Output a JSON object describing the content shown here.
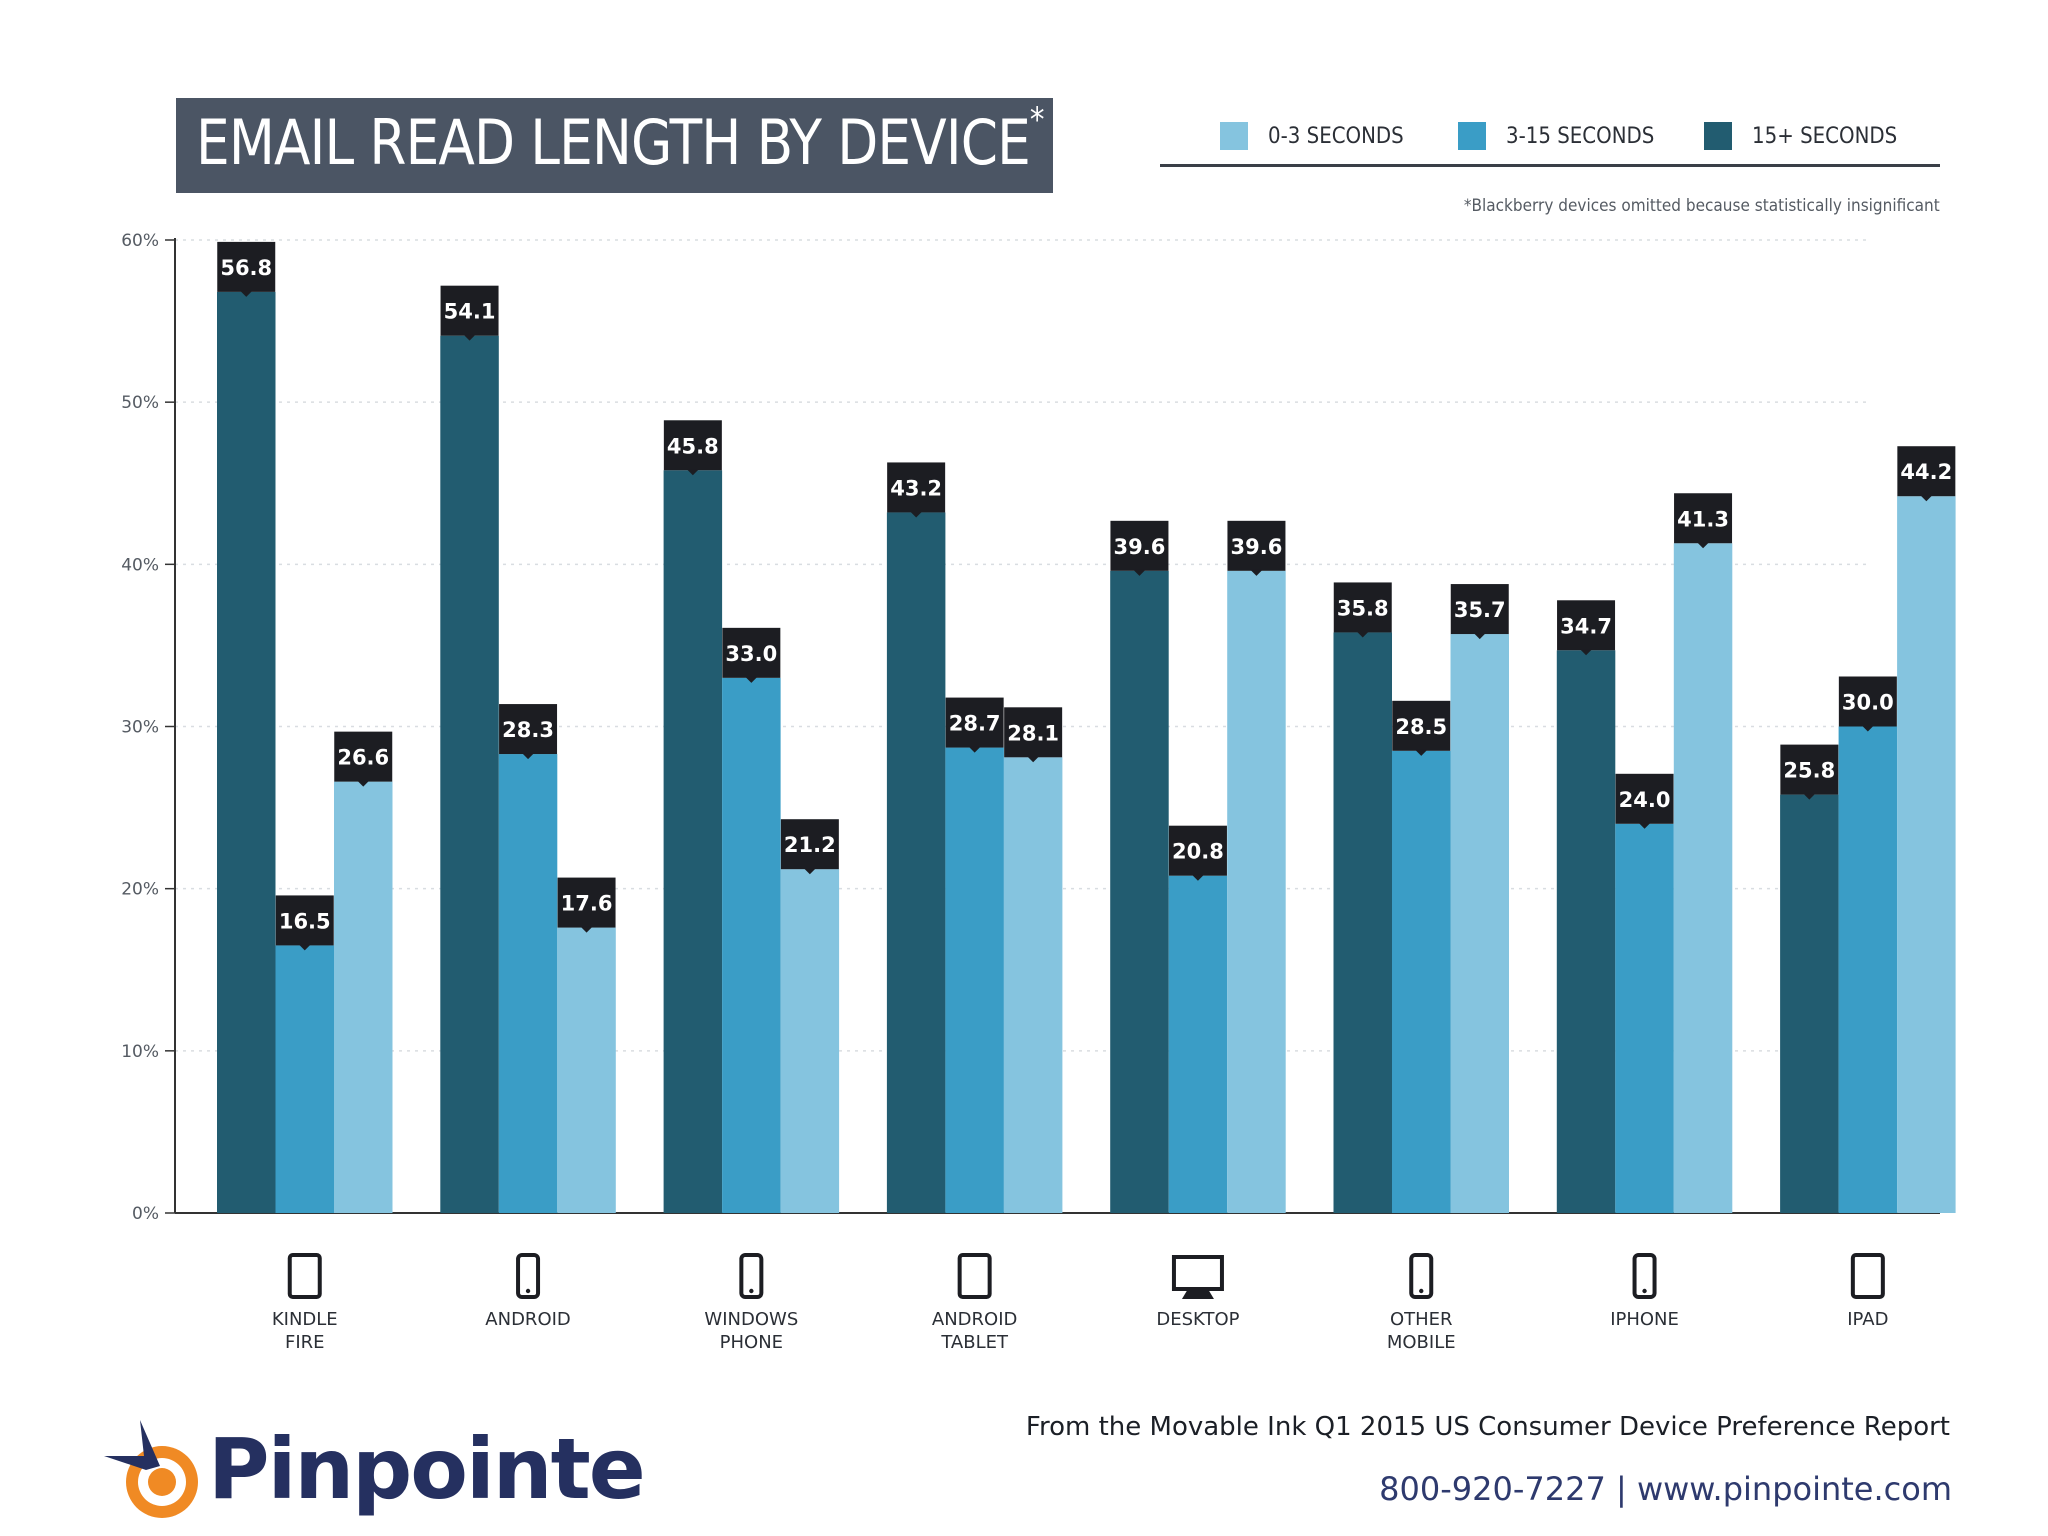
{
  "header": {
    "title": "EMAIL READ LENGTH BY DEVICE",
    "title_mark": "*",
    "footnote": "*Blackberry devices omitted because statistically insignificant"
  },
  "legend": [
    {
      "label": "0-3 SECONDS",
      "color": "#85c4df"
    },
    {
      "label": "3-15 SECONDS",
      "color": "#3a9dc6"
    },
    {
      "label": "15+ SECONDS",
      "color": "#225c70"
    }
  ],
  "footer": {
    "source": "From the Movable Ink Q1 2015 US Consumer Device Preference Report",
    "contact": "800-920-7227 | www.pinpointe.com",
    "logo_text": "Pinpointe"
  },
  "chart_data": {
    "type": "bar",
    "ylim": [
      0,
      60
    ],
    "yticks": [
      {
        "value": 0,
        "label": "0%"
      },
      {
        "value": 10,
        "label": "10%"
      },
      {
        "value": 20,
        "label": "20%"
      },
      {
        "value": 30,
        "label": "30%"
      },
      {
        "value": 40,
        "label": "40%"
      },
      {
        "value": 50,
        "label": "50%"
      },
      {
        "value": 60,
        "label": "60%"
      }
    ],
    "grid": true,
    "legend_position": "top-right",
    "categories": [
      {
        "lines": [
          "KINDLE",
          "FIRE"
        ],
        "icon": "tablet-icon"
      },
      {
        "lines": [
          "ANDROID"
        ],
        "icon": "smartphone-icon"
      },
      {
        "lines": [
          "WINDOWS",
          "PHONE"
        ],
        "icon": "smartphone-icon"
      },
      {
        "lines": [
          "ANDROID",
          "TABLET"
        ],
        "icon": "tablet-icon"
      },
      {
        "lines": [
          "DESKTOP"
        ],
        "icon": "desktop-monitor-icon"
      },
      {
        "lines": [
          "OTHER",
          "MOBILE"
        ],
        "icon": "smartphone-icon"
      },
      {
        "lines": [
          "IPHONE"
        ],
        "icon": "smartphone-icon"
      },
      {
        "lines": [
          "IPAD"
        ],
        "icon": "tablet-icon"
      }
    ],
    "series": [
      {
        "name": "15+ SECONDS",
        "color": "#225c70",
        "values": [
          56.8,
          54.1,
          45.8,
          43.2,
          39.6,
          35.8,
          34.7,
          25.8
        ],
        "labels": [
          "56.8",
          "54.1",
          "45.8",
          "43.2",
          "39.6",
          "35.8",
          "34.7",
          "25.8"
        ]
      },
      {
        "name": "3-15 SECONDS",
        "color": "#3a9dc6",
        "values": [
          16.5,
          28.3,
          33.0,
          28.7,
          20.8,
          28.5,
          24.0,
          30.0
        ],
        "labels": [
          "16.5",
          "28.3",
          "33.0",
          "28.7",
          "20.8",
          "28.5",
          "24.0",
          "30.0"
        ]
      },
      {
        "name": "0-3 SECONDS",
        "color": "#85c4df",
        "values": [
          26.6,
          17.6,
          21.2,
          28.1,
          39.6,
          35.7,
          41.3,
          44.2
        ],
        "labels": [
          "26.6",
          "17.6",
          "21.2",
          "28.1",
          "39.6",
          "35.7",
          "41.3",
          "44.2"
        ]
      }
    ]
  }
}
